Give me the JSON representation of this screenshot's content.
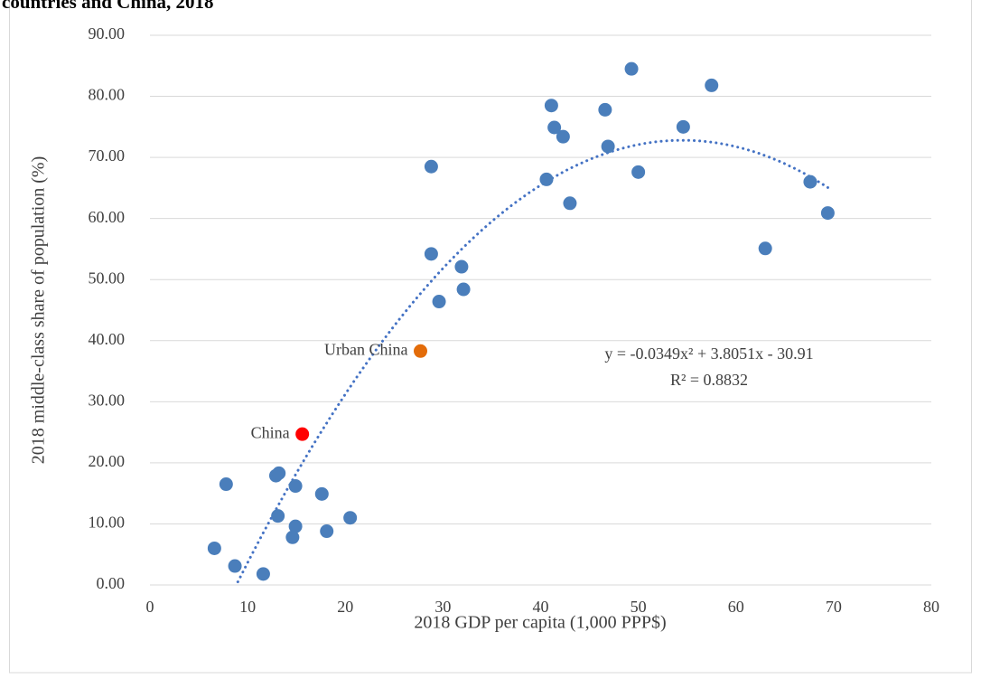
{
  "chart_data": {
    "type": "scatter",
    "title": "countries and China, 2018",
    "x_label": "2018 GDP per capita (1,000 PPP$)",
    "y_label": "2018 middle-class share of population (%)",
    "xlim": [
      0,
      80
    ],
    "xticks": [
      0,
      10,
      20,
      30,
      40,
      50,
      60,
      70,
      80
    ],
    "ylim": [
      0,
      90
    ],
    "yticks": [
      {
        "value": 0,
        "label": "0.00"
      },
      {
        "value": 10,
        "label": "10.00"
      },
      {
        "value": 20,
        "label": "20.00"
      },
      {
        "value": 30,
        "label": "30.00"
      },
      {
        "value": 40,
        "label": "40.00"
      },
      {
        "value": 50,
        "label": "50.00"
      },
      {
        "value": 60,
        "label": "60.00"
      },
      {
        "value": 70,
        "label": "70.00"
      },
      {
        "value": 80,
        "label": "80.00"
      },
      {
        "value": 90,
        "label": "90.00"
      }
    ],
    "grid": true,
    "series": [
      {
        "color": "#4a7ebb",
        "x": [
          6.6,
          7.8,
          8.7,
          11.6,
          12.9,
          13.2,
          13.1,
          14.9,
          14.9,
          14.6,
          17.6,
          18.1,
          20.5,
          28.8,
          28.8,
          29.6,
          31.9,
          32.1,
          40.6,
          41.1,
          41.4,
          42.3,
          43.0,
          46.6,
          46.9,
          49.3,
          50.0,
          54.6,
          57.5,
          63.0,
          67.6,
          69.4
        ],
        "y": [
          6.0,
          16.5,
          3.1,
          1.8,
          17.9,
          18.3,
          11.3,
          16.2,
          9.6,
          7.8,
          14.9,
          8.8,
          11.0,
          68.5,
          54.2,
          46.4,
          52.1,
          48.4,
          66.4,
          78.5,
          74.9,
          73.4,
          62.5,
          77.8,
          71.8,
          84.5,
          67.6,
          75.0,
          81.8,
          55.1,
          66.0,
          60.9
        ]
      },
      {
        "name": "China",
        "color": "#ff0000",
        "x": [
          15.6
        ],
        "y": [
          24.7
        ]
      },
      {
        "name": "Urban China",
        "color": "#e36c0a",
        "x": [
          27.7
        ],
        "y": [
          38.3
        ]
      }
    ],
    "trendline": {
      "equation": "y = -0.0349x² + 3.8051x - 30.91",
      "r2": "R² = 0.8832",
      "coefficients": [
        -0.0349,
        3.8051,
        -30.91
      ],
      "xrange": [
        9.0,
        69.4
      ],
      "color": "#4472c4"
    }
  }
}
